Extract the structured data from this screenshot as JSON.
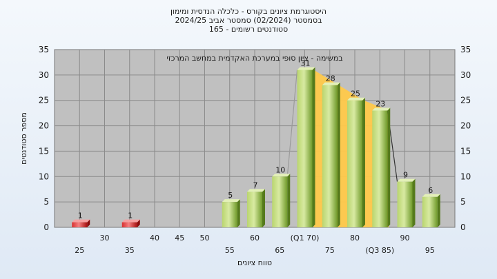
{
  "chart_data": {
    "type": "bar",
    "title_lines": [
      "היסטוגרמת ציונים בקורס - כלכלה הנדסית ומימון",
      "בסמסטר  (02/2024)  סמסטר אביב 2024/25",
      "סטודנטים רשומים - 165"
    ],
    "subtitle": "במשימה - ציון סופי במערכת האקדמית במחשב המרכזי",
    "xlabel": "טווח ציונים",
    "ylabel": "מספר סטודנטים",
    "ylim": [
      0,
      35
    ],
    "yticks": [
      0,
      5,
      10,
      15,
      20,
      25,
      30,
      35
    ],
    "grid": true,
    "x_ticks_row1": [
      {
        "x": 25,
        "label": "25"
      },
      {
        "x": 35,
        "label": "35"
      },
      {
        "x": 55,
        "label": "55"
      },
      {
        "x": 65,
        "label": "65"
      },
      {
        "x": 75,
        "label": "75"
      },
      {
        "x": 85,
        "label": "(Q3 85)"
      },
      {
        "x": 95,
        "label": "95"
      }
    ],
    "x_ticks_row2": [
      {
        "x": 30,
        "label": "30"
      },
      {
        "x": 40,
        "label": "40"
      },
      {
        "x": 45,
        "label": "45"
      },
      {
        "x": 50,
        "label": "50"
      },
      {
        "x": 60,
        "label": "60"
      },
      {
        "x": 70,
        "label": "(Q1 70)"
      },
      {
        "x": 80,
        "label": "80"
      },
      {
        "x": 90,
        "label": "90"
      }
    ],
    "bars": [
      {
        "x": 25,
        "value": 1,
        "color": "red"
      },
      {
        "x": 35,
        "value": 1,
        "color": "red"
      },
      {
        "x": 55,
        "value": 5,
        "color": "green"
      },
      {
        "x": 60,
        "value": 7,
        "color": "green"
      },
      {
        "x": 65,
        "value": 10,
        "color": "green"
      },
      {
        "x": 70,
        "value": 31,
        "color": "green"
      },
      {
        "x": 75,
        "value": 28,
        "color": "green"
      },
      {
        "x": 80,
        "value": 25,
        "color": "green"
      },
      {
        "x": 85,
        "value": 23,
        "color": "green"
      },
      {
        "x": 90,
        "value": 9,
        "color": "green"
      },
      {
        "x": 95,
        "value": 6,
        "color": "green"
      }
    ],
    "highlight_range": [
      70,
      85
    ],
    "colors": {
      "plot_bg": "#c0c0c0",
      "grid": "#8a8a8a",
      "green_light": "#cfe39a",
      "green_dark": "#6f9a2a",
      "red_light": "#f07070",
      "red_dark": "#b81818",
      "highlight": "#ffc94a"
    }
  }
}
